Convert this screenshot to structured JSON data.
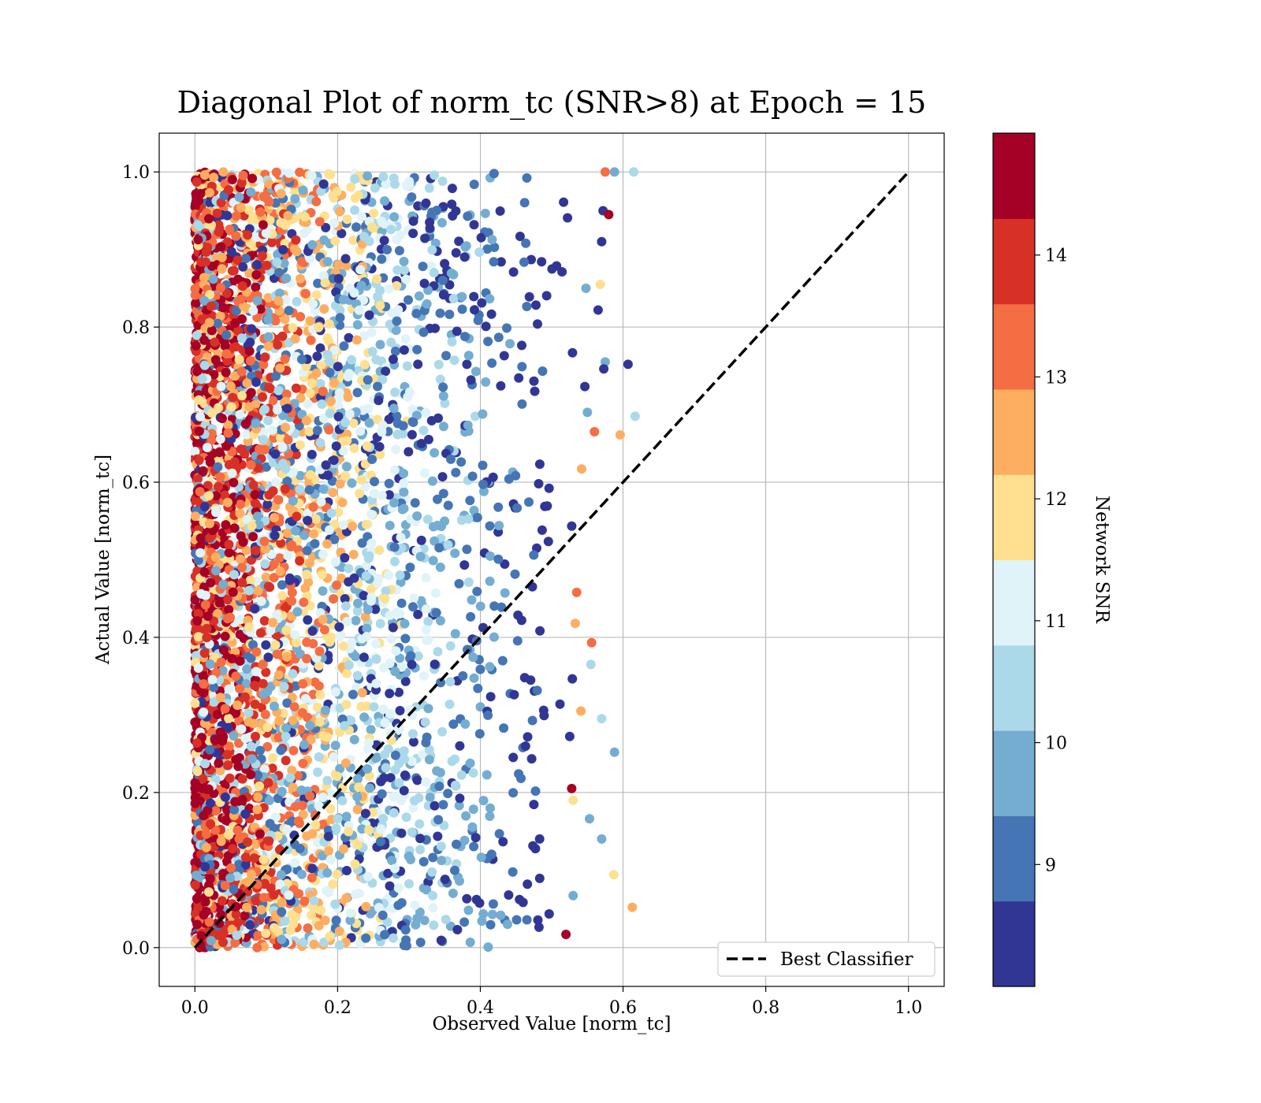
{
  "chart_data": {
    "type": "scatter",
    "title": "Diagonal Plot of norm_tc (SNR>8) at Epoch = 15",
    "xlabel": "Observed Value [norm_tc]",
    "ylabel": "Actual Value [norm_tc]",
    "xlim": [
      -0.05,
      1.05
    ],
    "ylim": [
      -0.05,
      1.05
    ],
    "xticks": [
      0.0,
      0.2,
      0.4,
      0.6,
      0.8,
      1.0
    ],
    "xtick_labels": [
      "0.0",
      "0.2",
      "0.4",
      "0.6",
      "0.8",
      "1.0"
    ],
    "yticks": [
      0.0,
      0.2,
      0.4,
      0.6,
      0.8,
      1.0
    ],
    "ytick_labels": [
      "0.0",
      "0.2",
      "0.4",
      "0.6",
      "0.8",
      "1.0"
    ],
    "grid": true,
    "legend": {
      "placement": "lower right",
      "entries": [
        {
          "label": "Best Classifier",
          "style": "dashed",
          "color": "#000000"
        }
      ]
    },
    "reference_line": {
      "name": "Best Classifier",
      "x": [
        0.0,
        1.0
      ],
      "y": [
        0.0,
        1.0
      ],
      "style": "dashed"
    },
    "colorbar": {
      "label": "Network SNR",
      "range": [
        8.0,
        15.0
      ],
      "ticks": [
        9,
        10,
        11,
        12,
        13,
        14
      ],
      "tick_labels": [
        "9",
        "10",
        "11",
        "12",
        "13",
        "14"
      ],
      "colors": [
        "#313695",
        "#4575b4",
        "#74add1",
        "#abd9e9",
        "#e0f3f8",
        "#fee090",
        "#fdae61",
        "#f46d43",
        "#d73027",
        "#a50026"
      ]
    },
    "series": [
      {
        "encoding": "color = Network SNR",
        "distribution": {
          "x_range_low_snr": [
            0.0,
            0.55
          ],
          "x_range_high_snr": [
            0.0,
            0.05
          ],
          "y_range": [
            0.0,
            1.0
          ],
          "dense_band_x": [
            0.0,
            0.02
          ]
        },
        "outliers": [
          {
            "x": 0.615,
            "y": 1.0,
            "snr": 10.5
          },
          {
            "x": 0.588,
            "y": 1.0,
            "snr": 9.5
          },
          {
            "x": 0.575,
            "y": 1.0,
            "snr": 13.5
          },
          {
            "x": 0.572,
            "y": 0.95,
            "snr": 8.5
          },
          {
            "x": 0.58,
            "y": 0.945,
            "snr": 14.5
          },
          {
            "x": 0.57,
            "y": 0.91,
            "snr": 8.5
          },
          {
            "x": 0.568,
            "y": 0.855,
            "snr": 11.5
          },
          {
            "x": 0.565,
            "y": 0.822,
            "snr": 8.5
          },
          {
            "x": 0.548,
            "y": 0.85,
            "snr": 9.5
          },
          {
            "x": 0.607,
            "y": 0.752,
            "snr": 8.5
          },
          {
            "x": 0.575,
            "y": 0.755,
            "snr": 9.5
          },
          {
            "x": 0.573,
            "y": 0.746,
            "snr": 8.5
          },
          {
            "x": 0.617,
            "y": 0.685,
            "snr": 10.5
          },
          {
            "x": 0.55,
            "y": 0.69,
            "snr": 9.5
          },
          {
            "x": 0.56,
            "y": 0.665,
            "snr": 13.5
          },
          {
            "x": 0.596,
            "y": 0.661,
            "snr": 12.5
          },
          {
            "x": 0.542,
            "y": 0.617,
            "snr": 12.5
          },
          {
            "x": 0.556,
            "y": 0.393,
            "snr": 13.5
          },
          {
            "x": 0.555,
            "y": 0.365,
            "snr": 10.5
          },
          {
            "x": 0.588,
            "y": 0.252,
            "snr": 9.5
          },
          {
            "x": 0.57,
            "y": 0.295,
            "snr": 10.5
          },
          {
            "x": 0.541,
            "y": 0.305,
            "snr": 12.5
          },
          {
            "x": 0.535,
            "y": 0.458,
            "snr": 13.5
          },
          {
            "x": 0.533,
            "y": 0.418,
            "snr": 12.5
          },
          {
            "x": 0.528,
            "y": 0.205,
            "snr": 14.5
          },
          {
            "x": 0.53,
            "y": 0.19,
            "snr": 11.5
          },
          {
            "x": 0.553,
            "y": 0.166,
            "snr": 9.5
          },
          {
            "x": 0.57,
            "y": 0.14,
            "snr": 9.5
          },
          {
            "x": 0.587,
            "y": 0.094,
            "snr": 11.5
          },
          {
            "x": 0.613,
            "y": 0.052,
            "snr": 12.5
          },
          {
            "x": 0.53,
            "y": 0.067,
            "snr": 9.5
          },
          {
            "x": 0.52,
            "y": 0.017,
            "snr": 14.5
          }
        ]
      }
    ]
  }
}
